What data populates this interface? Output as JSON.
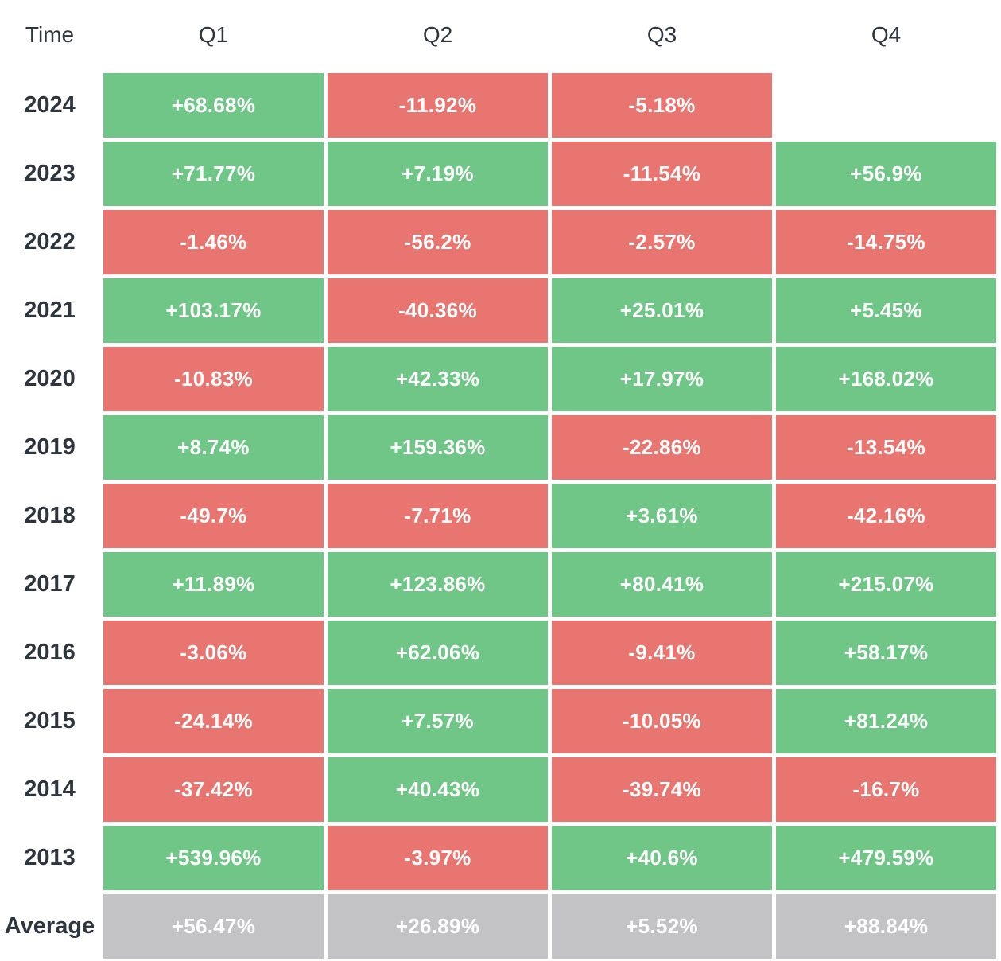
{
  "table": {
    "time_header": "Time"
  },
  "colors": {
    "positive": "#6fc687",
    "negative": "#e8756f",
    "average": "#c3c2c4",
    "cell_text": "#ffffff",
    "label_text": "#2f353e",
    "background": "#ffffff"
  },
  "chart_data": {
    "type": "heatmap",
    "title": "",
    "columns": [
      "Q1",
      "Q2",
      "Q3",
      "Q4"
    ],
    "row_labels": [
      "2024",
      "2023",
      "2022",
      "2021",
      "2020",
      "2019",
      "2018",
      "2017",
      "2016",
      "2015",
      "2014",
      "2013",
      "Average"
    ],
    "values_percent": [
      [
        68.68,
        -11.92,
        -5.18,
        null
      ],
      [
        71.77,
        7.19,
        -11.54,
        56.9
      ],
      [
        -1.46,
        -56.2,
        -2.57,
        -14.75
      ],
      [
        103.17,
        -40.36,
        25.01,
        5.45
      ],
      [
        -10.83,
        42.33,
        17.97,
        168.02
      ],
      [
        8.74,
        159.36,
        -22.86,
        -13.54
      ],
      [
        -49.7,
        -7.71,
        3.61,
        -42.16
      ],
      [
        11.89,
        123.86,
        80.41,
        215.07
      ],
      [
        -3.06,
        62.06,
        -9.41,
        58.17
      ],
      [
        -24.14,
        7.57,
        -10.05,
        81.24
      ],
      [
        -37.42,
        40.43,
        -39.74,
        -16.7
      ],
      [
        539.96,
        -3.97,
        40.6,
        479.59
      ],
      [
        56.47,
        26.89,
        5.52,
        88.84
      ]
    ],
    "display": [
      [
        "+68.68%",
        "-11.92%",
        "-5.18%",
        null
      ],
      [
        "+71.77%",
        "+7.19%",
        "-11.54%",
        "+56.9%"
      ],
      [
        "-1.46%",
        "-56.2%",
        "-2.57%",
        "-14.75%"
      ],
      [
        "+103.17%",
        "-40.36%",
        "+25.01%",
        "+5.45%"
      ],
      [
        "-10.83%",
        "+42.33%",
        "+17.97%",
        "+168.02%"
      ],
      [
        "+8.74%",
        "+159.36%",
        "-22.86%",
        "-13.54%"
      ],
      [
        "-49.7%",
        "-7.71%",
        "+3.61%",
        "-42.16%"
      ],
      [
        "+11.89%",
        "+123.86%",
        "+80.41%",
        "+215.07%"
      ],
      [
        "-3.06%",
        "+62.06%",
        "-9.41%",
        "+58.17%"
      ],
      [
        "-24.14%",
        "+7.57%",
        "-10.05%",
        "+81.24%"
      ],
      [
        "-37.42%",
        "+40.43%",
        "-39.74%",
        "-16.7%"
      ],
      [
        "+539.96%",
        "-3.97%",
        "+40.6%",
        "+479.59%"
      ],
      [
        "+56.47%",
        "+26.89%",
        "+5.52%",
        "+88.84%"
      ]
    ],
    "cell_kinds": [
      [
        "positive",
        "negative",
        "negative",
        null
      ],
      [
        "positive",
        "positive",
        "negative",
        "positive"
      ],
      [
        "negative",
        "negative",
        "negative",
        "negative"
      ],
      [
        "positive",
        "negative",
        "positive",
        "positive"
      ],
      [
        "negative",
        "positive",
        "positive",
        "positive"
      ],
      [
        "positive",
        "positive",
        "negative",
        "negative"
      ],
      [
        "negative",
        "negative",
        "positive",
        "negative"
      ],
      [
        "positive",
        "positive",
        "positive",
        "positive"
      ],
      [
        "negative",
        "positive",
        "negative",
        "positive"
      ],
      [
        "negative",
        "positive",
        "negative",
        "positive"
      ],
      [
        "negative",
        "positive",
        "negative",
        "negative"
      ],
      [
        "positive",
        "negative",
        "positive",
        "positive"
      ],
      [
        "average",
        "average",
        "average",
        "average"
      ]
    ],
    "legend_position": "none",
    "grid": false
  }
}
